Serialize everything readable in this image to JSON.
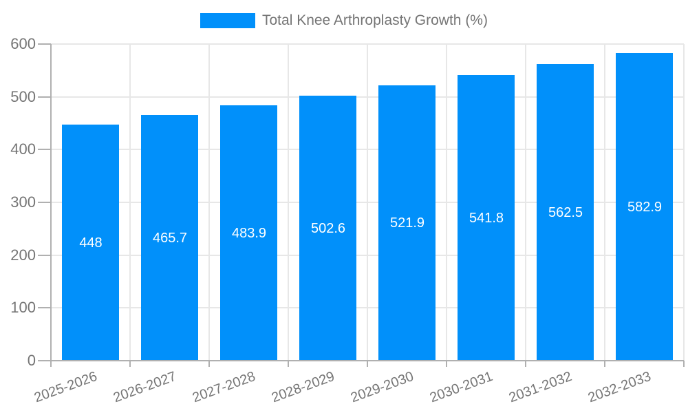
{
  "chart_data": {
    "type": "bar",
    "title": "Total Knee Arthroplasty Growth (%)",
    "legend": {
      "position": "top",
      "entries": [
        {
          "label": "Total Knee Arthroplasty Growth (%)",
          "color": "#0190fa"
        }
      ]
    },
    "categories": [
      "2025-2026",
      "2026-2027",
      "2027-2028",
      "2028-2029",
      "2029-2030",
      "2030-2031",
      "2031-2032",
      "2032-2033"
    ],
    "series": [
      {
        "name": "Total Knee Arthroplasty Growth (%)",
        "values": [
          448,
          465.7,
          483.9,
          502.6,
          521.9,
          541.8,
          562.5,
          582.9
        ]
      }
    ],
    "bar_labels": [
      "448",
      "465.7",
      "483.9",
      "502.6",
      "521.9",
      "541.8",
      "562.5",
      "582.9"
    ],
    "xlabel": "",
    "ylabel": "",
    "ylim": [
      0,
      600
    ],
    "yticks": [
      0,
      100,
      200,
      300,
      400,
      500,
      600
    ],
    "grid": true,
    "colors": {
      "bar": "#0190fa",
      "bar_label": "#ffffff",
      "axis_text": "#757575",
      "gridline": "#e7e7e7",
      "axis_line": "#b0b0b0",
      "background": "#ffffff"
    }
  }
}
